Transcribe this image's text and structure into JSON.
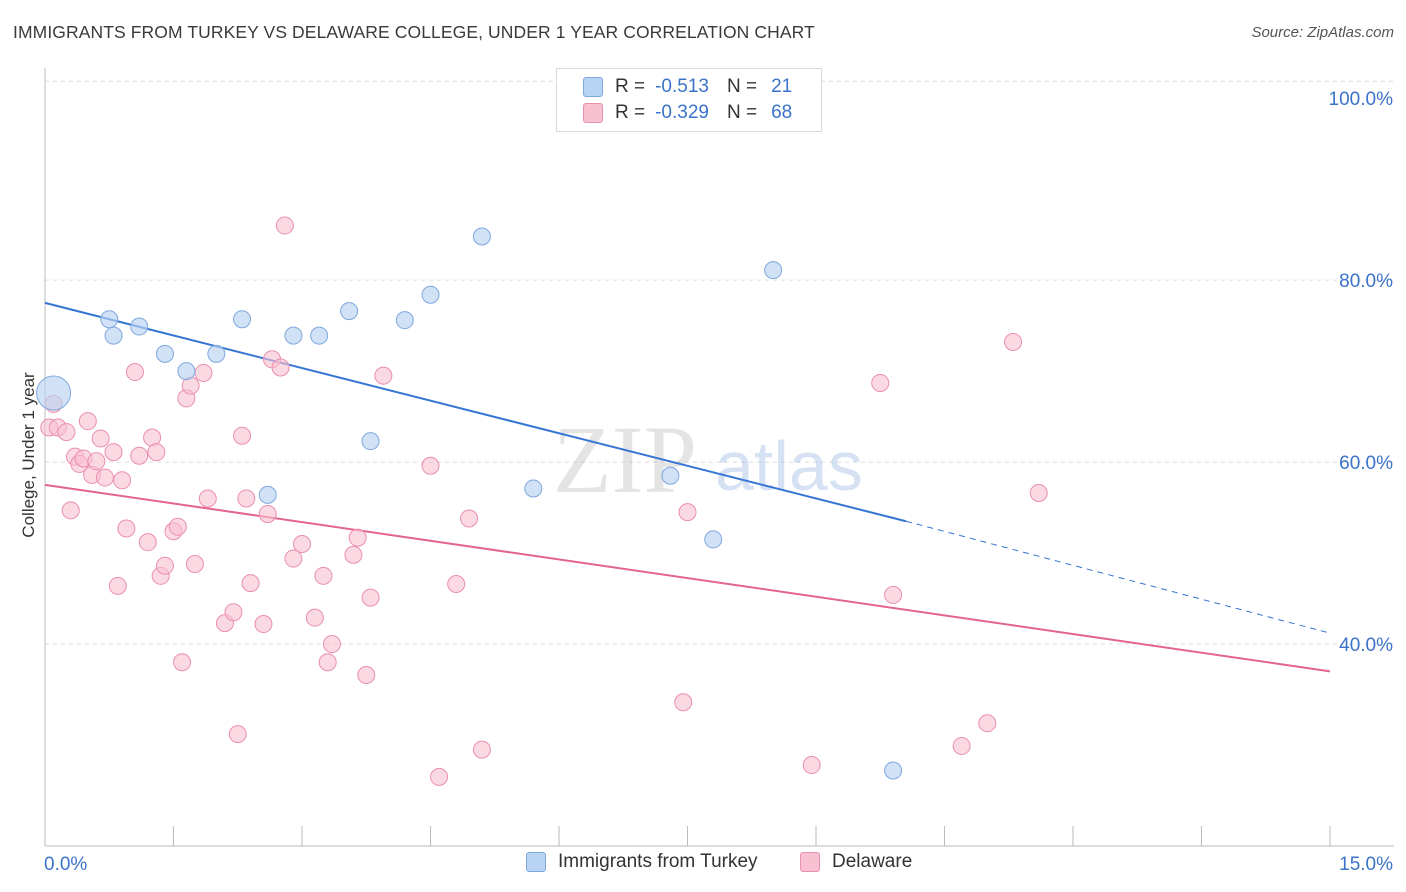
{
  "title": "IMMIGRANTS FROM TURKEY VS DELAWARE COLLEGE, UNDER 1 YEAR CORRELATION CHART",
  "source": "Source: ZipAtlas.com",
  "watermark": {
    "zip": "ZIP",
    "atlas": "atlas"
  },
  "colors": {
    "blue_fill": "#b9d3f3",
    "blue_stroke": "#7fa8de",
    "blue_line": "#3575d3",
    "pink_fill": "#f8c0d1",
    "pink_stroke": "#ea8fae",
    "pink_line": "#e2648f",
    "axis_text": "#3b73c9",
    "grid": "#dddddd"
  },
  "legend": {
    "rows": [
      {
        "r_label": "R =",
        "r_value": "-0.513",
        "n_label": "N =",
        "n_value": "21"
      },
      {
        "r_label": "R =",
        "r_value": "-0.329",
        "n_label": "N =",
        "n_value": "68"
      }
    ]
  },
  "bottom_legend": {
    "series1": "Immigrants from Turkey",
    "series2": "Delaware"
  },
  "chart_data": {
    "type": "scatter",
    "ylabel": "College, Under 1 year",
    "xlabel": "",
    "x_tick_labels": [
      "0.0%",
      "15.0%"
    ],
    "y_tick_labels": [
      "100.0%",
      "80.0%",
      "60.0%",
      "40.0%"
    ],
    "y_ticks": [
      100,
      80,
      60,
      40
    ],
    "xlim": [
      0,
      15
    ],
    "ylim": [
      20,
      102
    ],
    "grid": true,
    "legend_position": "top-center",
    "series": [
      {
        "name": "Immigrants from Turkey",
        "color": "#b9d3f3",
        "points": [
          [
            0.1,
            67.6
          ],
          [
            0.75,
            75.7
          ],
          [
            0.8,
            73.9
          ],
          [
            1.1,
            74.9
          ],
          [
            1.4,
            71.9
          ],
          [
            1.65,
            70.0
          ],
          [
            2.0,
            71.9
          ],
          [
            2.3,
            75.7
          ],
          [
            2.6,
            56.4
          ],
          [
            2.9,
            73.9
          ],
          [
            3.2,
            73.9
          ],
          [
            3.55,
            76.6
          ],
          [
            3.8,
            62.3
          ],
          [
            4.2,
            75.6
          ],
          [
            4.5,
            78.4
          ],
          [
            5.1,
            84.8
          ],
          [
            5.7,
            57.1
          ],
          [
            7.3,
            58.5
          ],
          [
            7.8,
            51.5
          ],
          [
            8.5,
            81.1
          ],
          [
            9.9,
            26.1
          ]
        ],
        "trend": {
          "x": [
            0,
            10.05
          ],
          "y": [
            77.5,
            53.5
          ]
        },
        "trend_dashed": {
          "x": [
            10.05,
            15
          ],
          "y": [
            53.5,
            41.2
          ]
        }
      },
      {
        "name": "Delaware",
        "color": "#f8c0d1",
        "points": [
          [
            0.05,
            63.8
          ],
          [
            0.1,
            66.4
          ],
          [
            0.15,
            63.8
          ],
          [
            0.25,
            63.3
          ],
          [
            0.3,
            54.7
          ],
          [
            0.35,
            60.6
          ],
          [
            0.4,
            59.8
          ],
          [
            0.45,
            60.4
          ],
          [
            0.5,
            64.5
          ],
          [
            0.55,
            58.6
          ],
          [
            0.6,
            60.1
          ],
          [
            0.65,
            62.6
          ],
          [
            0.7,
            58.3
          ],
          [
            0.8,
            61.1
          ],
          [
            0.85,
            46.4
          ],
          [
            0.9,
            58.0
          ],
          [
            0.95,
            52.7
          ],
          [
            1.05,
            69.9
          ],
          [
            1.1,
            60.7
          ],
          [
            1.2,
            51.2
          ],
          [
            1.25,
            62.7
          ],
          [
            1.3,
            61.1
          ],
          [
            1.35,
            47.5
          ],
          [
            1.4,
            48.6
          ],
          [
            1.5,
            52.4
          ],
          [
            1.55,
            52.9
          ],
          [
            1.6,
            38.0
          ],
          [
            1.65,
            67.0
          ],
          [
            1.7,
            68.4
          ],
          [
            1.75,
            48.8
          ],
          [
            1.85,
            69.8
          ],
          [
            1.9,
            56.0
          ],
          [
            2.1,
            42.3
          ],
          [
            2.2,
            43.5
          ],
          [
            2.25,
            30.1
          ],
          [
            2.3,
            62.9
          ],
          [
            2.35,
            56.0
          ],
          [
            2.4,
            46.7
          ],
          [
            2.55,
            42.2
          ],
          [
            2.6,
            54.3
          ],
          [
            2.65,
            71.3
          ],
          [
            2.75,
            70.4
          ],
          [
            2.8,
            86.0
          ],
          [
            2.9,
            49.4
          ],
          [
            3.0,
            51.0
          ],
          [
            3.15,
            42.9
          ],
          [
            3.25,
            47.5
          ],
          [
            3.3,
            38.0
          ],
          [
            3.35,
            40.0
          ],
          [
            3.6,
            49.8
          ],
          [
            3.65,
            51.7
          ],
          [
            3.75,
            36.6
          ],
          [
            3.8,
            45.1
          ],
          [
            3.95,
            69.5
          ],
          [
            4.5,
            59.6
          ],
          [
            4.6,
            25.4
          ],
          [
            4.8,
            46.6
          ],
          [
            4.95,
            53.8
          ],
          [
            5.1,
            28.4
          ],
          [
            7.45,
            33.6
          ],
          [
            7.5,
            54.5
          ],
          [
            8.95,
            26.7
          ],
          [
            9.75,
            68.7
          ],
          [
            9.9,
            45.4
          ],
          [
            10.7,
            28.8
          ],
          [
            11.0,
            31.3
          ],
          [
            11.3,
            73.2
          ],
          [
            11.6,
            56.6
          ]
        ],
        "trend": {
          "x": [
            0,
            15
          ],
          "y": [
            57.5,
            37.0
          ]
        }
      }
    ]
  }
}
